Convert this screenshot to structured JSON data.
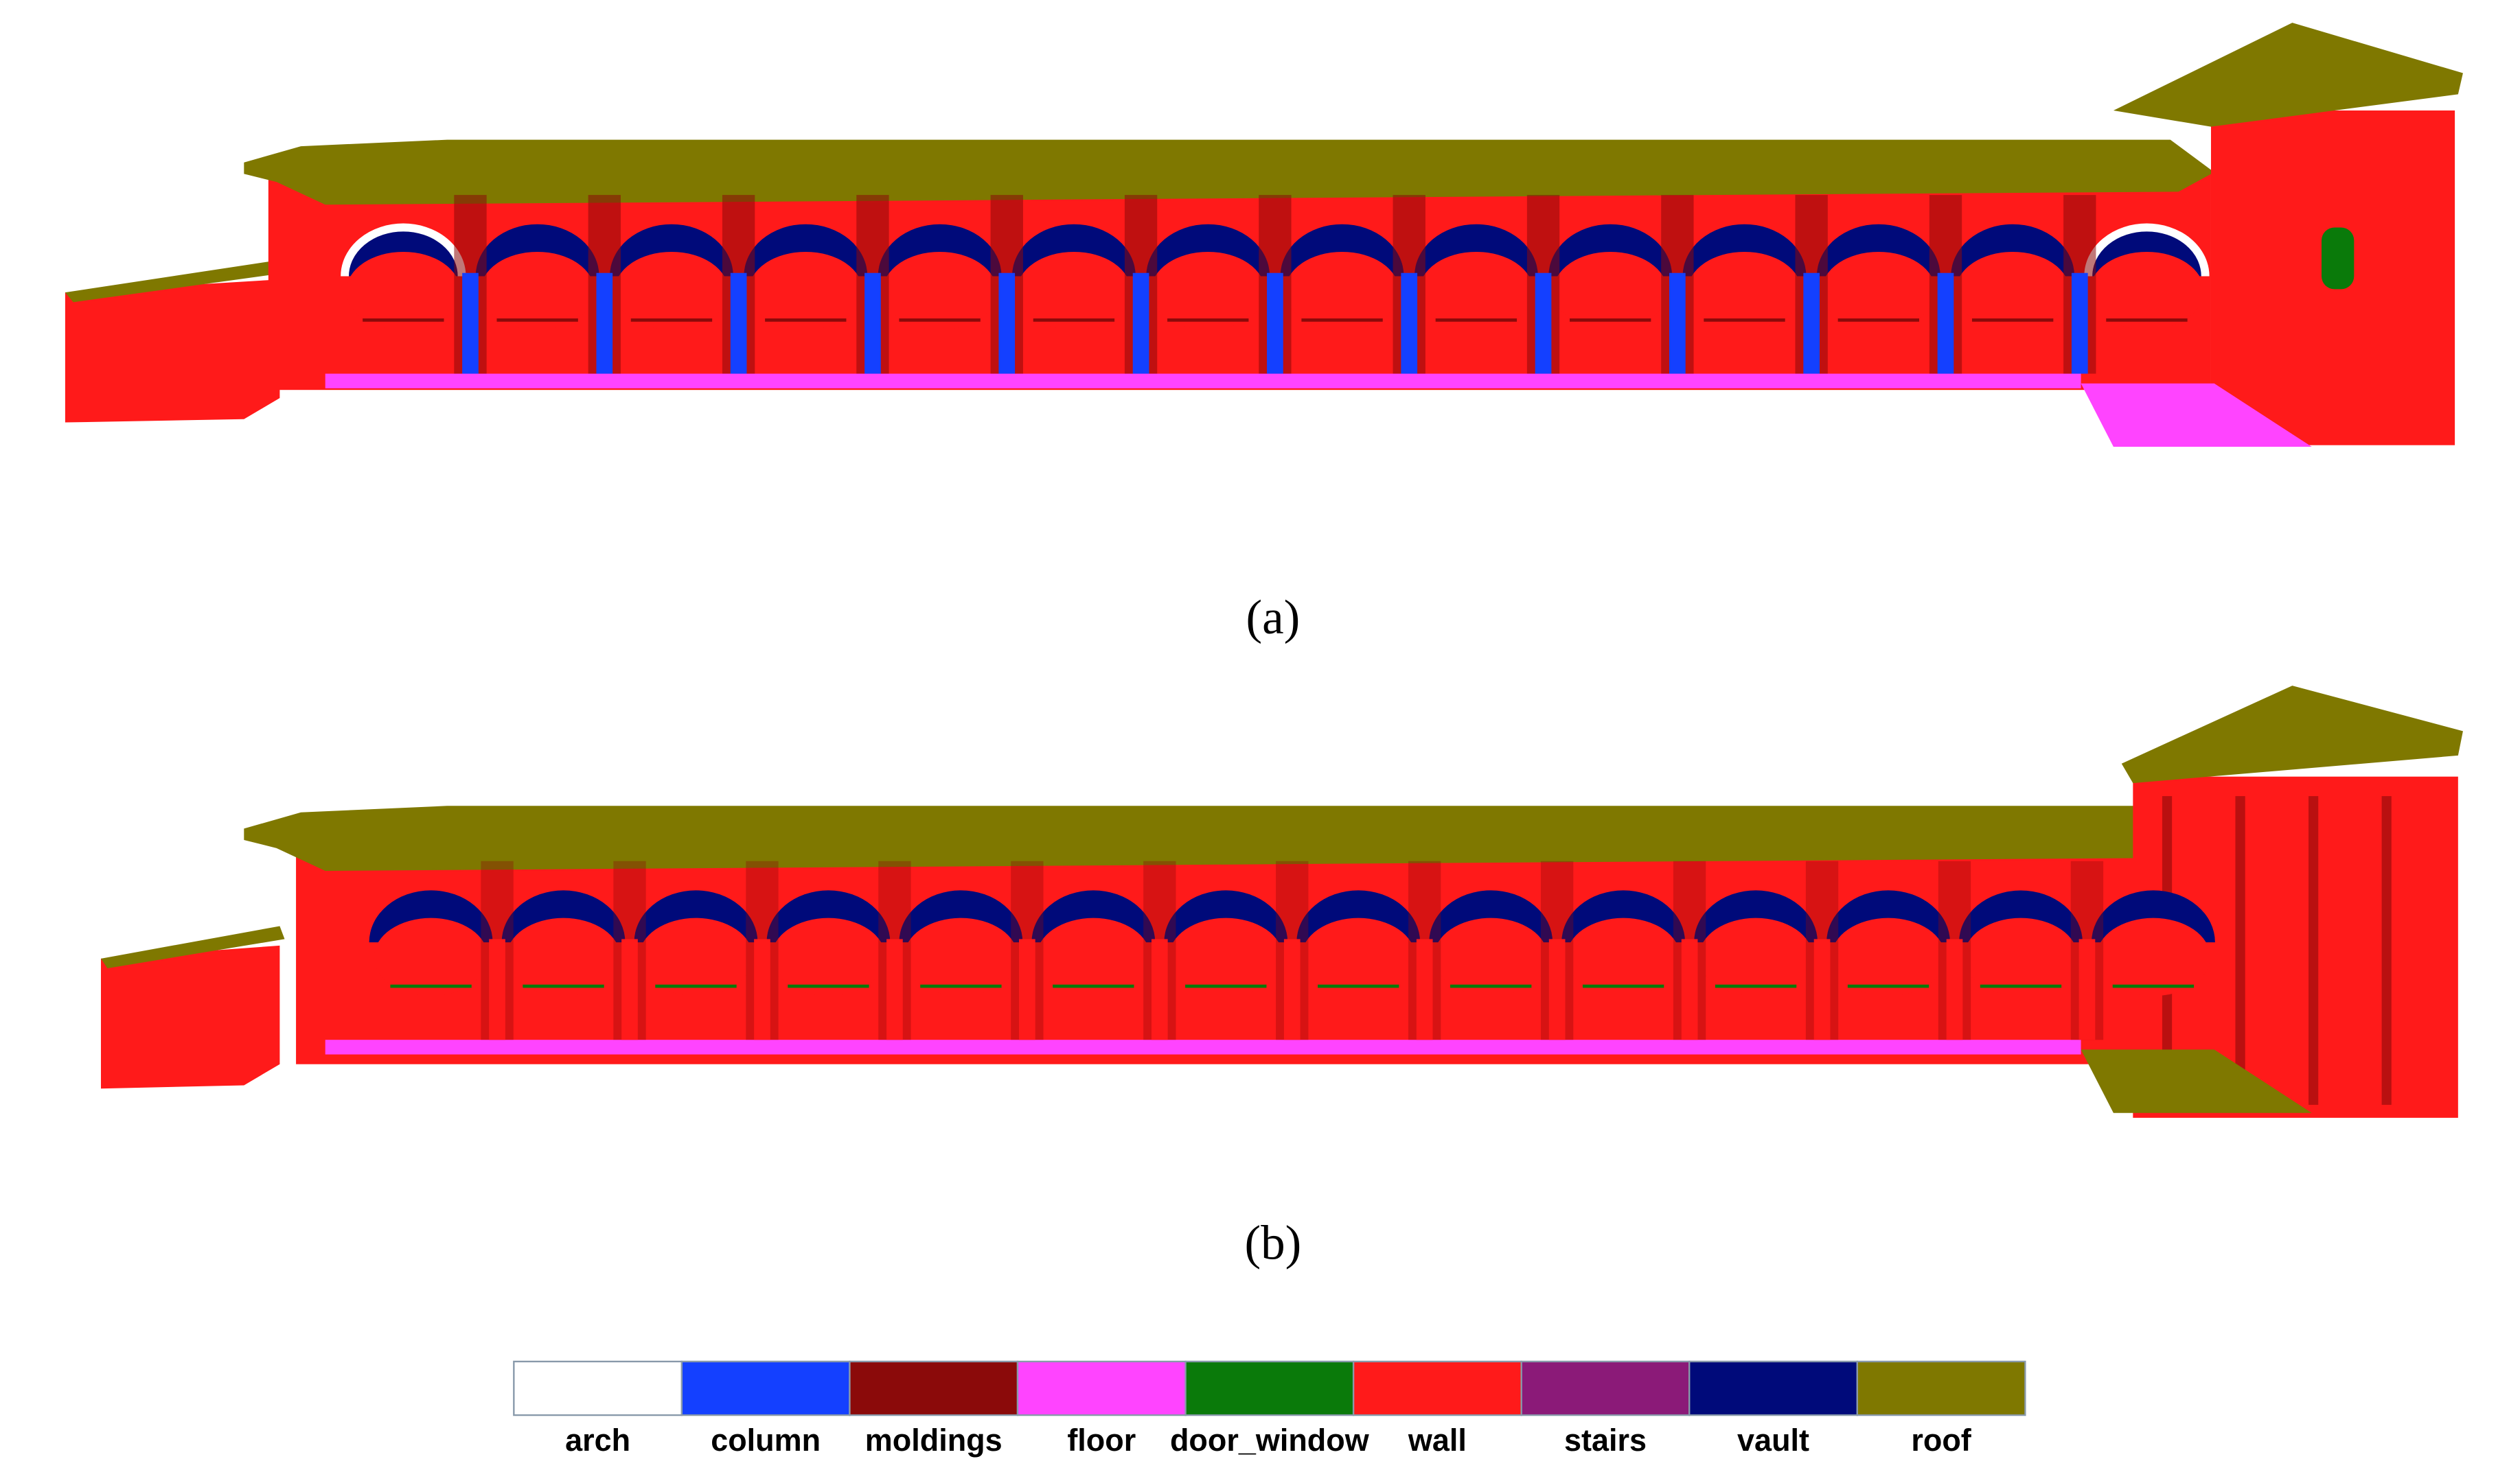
{
  "panels": [
    {
      "label": "(a)"
    },
    {
      "label": "(b)"
    }
  ],
  "legend": {
    "items": [
      {
        "name": "arch",
        "color": "#ffffff"
      },
      {
        "name": "column",
        "color": "#1440ff"
      },
      {
        "name": "moldings",
        "color": "#8b0a0a"
      },
      {
        "name": "floor",
        "color": "#ff44ff"
      },
      {
        "name": "door_window",
        "color": "#0a7a0a"
      },
      {
        "name": "wall",
        "color": "#ff1a1a"
      },
      {
        "name": "stairs",
        "color": "#8b1a78"
      },
      {
        "name": "vault",
        "color": "#000a7a"
      },
      {
        "name": "roof",
        "color": "#7f7800"
      }
    ]
  }
}
